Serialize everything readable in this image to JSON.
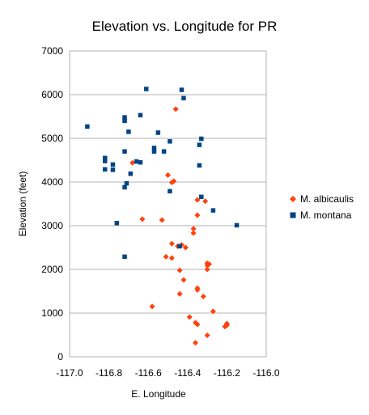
{
  "chart_data": {
    "type": "scatter",
    "title": "Elevation vs. Longitude for PR",
    "xlabel": "E. Longitude",
    "ylabel": "Elevation (feet)",
    "xlim": [
      -117.0,
      -116.0
    ],
    "ylim": [
      0,
      7000
    ],
    "xticks": [
      -117.0,
      -116.8,
      -116.6,
      -116.4,
      -116.2,
      -116.0
    ],
    "xtick_labels": [
      "-117.0",
      "-116.8",
      "-116.6",
      "-116.4",
      "-116.2",
      "-116.0"
    ],
    "yticks": [
      0,
      1000,
      2000,
      3000,
      4000,
      5000,
      6000,
      7000
    ],
    "ytick_labels": [
      "0",
      "1000",
      "2000",
      "3000",
      "4000",
      "5000",
      "6000",
      "7000"
    ],
    "grid": "horizontal",
    "legend_position": "right",
    "series": [
      {
        "name": "M. albicaulis",
        "marker": "diamond",
        "color": "#ff420e",
        "points": [
          [
            -116.46,
            5670
          ],
          [
            -116.68,
            4440
          ],
          [
            -116.5,
            4160
          ],
          [
            -116.47,
            4020
          ],
          [
            -116.48,
            3990
          ],
          [
            -116.35,
            3590
          ],
          [
            -116.31,
            3560
          ],
          [
            -116.35,
            3240
          ],
          [
            -116.63,
            3150
          ],
          [
            -116.53,
            3130
          ],
          [
            -116.37,
            2930
          ],
          [
            -116.37,
            2830
          ],
          [
            -116.48,
            2590
          ],
          [
            -116.43,
            2560
          ],
          [
            -116.45,
            2530
          ],
          [
            -116.41,
            2500
          ],
          [
            -116.51,
            2290
          ],
          [
            -116.48,
            2260
          ],
          [
            -116.3,
            2140
          ],
          [
            -116.29,
            2120
          ],
          [
            -116.3,
            2090
          ],
          [
            -116.3,
            2000
          ],
          [
            -116.44,
            1980
          ],
          [
            -116.42,
            1760
          ],
          [
            -116.35,
            1570
          ],
          [
            -116.35,
            1530
          ],
          [
            -116.44,
            1440
          ],
          [
            -116.32,
            1380
          ],
          [
            -116.58,
            1150
          ],
          [
            -116.27,
            1040
          ],
          [
            -116.39,
            910
          ],
          [
            -116.36,
            780
          ],
          [
            -116.35,
            740
          ],
          [
            -116.2,
            760
          ],
          [
            -116.2,
            720
          ],
          [
            -116.21,
            690
          ],
          [
            -116.3,
            490
          ],
          [
            -116.36,
            320
          ]
        ]
      },
      {
        "name": "M. montana",
        "marker": "square",
        "color": "#004586",
        "points": [
          [
            -116.61,
            6130
          ],
          [
            -116.43,
            6110
          ],
          [
            -116.42,
            5920
          ],
          [
            -116.72,
            5480
          ],
          [
            -116.72,
            5400
          ],
          [
            -116.64,
            5530
          ],
          [
            -116.91,
            5270
          ],
          [
            -116.7,
            5150
          ],
          [
            -116.55,
            5130
          ],
          [
            -116.33,
            4990
          ],
          [
            -116.49,
            4930
          ],
          [
            -116.34,
            4850
          ],
          [
            -116.57,
            4780
          ],
          [
            -116.57,
            4700
          ],
          [
            -116.52,
            4700
          ],
          [
            -116.72,
            4700
          ],
          [
            -116.82,
            4550
          ],
          [
            -116.82,
            4480
          ],
          [
            -116.64,
            4450
          ],
          [
            -116.66,
            4470
          ],
          [
            -116.78,
            4400
          ],
          [
            -116.34,
            4380
          ],
          [
            -116.82,
            4290
          ],
          [
            -116.78,
            4280
          ],
          [
            -116.69,
            4190
          ],
          [
            -116.71,
            3970
          ],
          [
            -116.72,
            3880
          ],
          [
            -116.49,
            3790
          ],
          [
            -116.33,
            3660
          ],
          [
            -116.27,
            3350
          ],
          [
            -116.76,
            3060
          ],
          [
            -116.15,
            3010
          ],
          [
            -116.44,
            2530
          ],
          [
            -116.72,
            2290
          ]
        ]
      }
    ]
  }
}
